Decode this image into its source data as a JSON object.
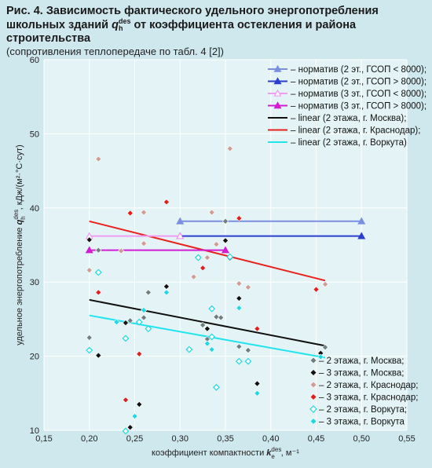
{
  "title": {
    "line1": "Рис. 4. Зависимость фактического удельного энергопотребления",
    "line2_pre": "школьных зданий ",
    "line2_sym": "q",
    "line2_sup": "des",
    "line2_sub": "h",
    "line2_post": " от коэффициента остекления и района строительства",
    "line3": "(сопротивления теплопередаче по табл. 4 [2])"
  },
  "chart_data": {
    "type": "scatter",
    "xlabel_pre": "коэффициент компактности ",
    "xlabel_sym": "k",
    "xlabel_sup": "des",
    "xlabel_sub": "e",
    "xlabel_post": ", м⁻¹",
    "ylabel_pre": "удельное энергопотребление ",
    "ylabel_sym": "q",
    "ylabel_sup": "des",
    "ylabel_sub": "h",
    "ylabel_post": ", кДж/(м²·°С·сут)",
    "xlim": [
      0.15,
      0.55
    ],
    "ylim": [
      10,
      60
    ],
    "xticks": [
      "0,15",
      "0,20",
      "0,25",
      "0,30",
      "0,35",
      "0,40",
      "0,45",
      "0,50",
      "0,55"
    ],
    "xtick_values": [
      0.15,
      0.2,
      0.25,
      0.3,
      0.35,
      0.4,
      0.45,
      0.5,
      0.55
    ],
    "yticks": [
      "10",
      "20",
      "30",
      "40",
      "50",
      "60"
    ],
    "ytick_values": [
      10,
      20,
      30,
      40,
      50,
      60
    ],
    "grid": true,
    "legend_top": [
      {
        "label": "– норматив (2 эт., ГСОП < 8000);",
        "color": "#7b8fe0",
        "marker": "triangle"
      },
      {
        "label": "– норматив (2 эт., ГСОП > 8000);",
        "color": "#2b3fcf",
        "marker": "triangle"
      },
      {
        "label": "– норматив (3 эт., ГСОП < 8000);",
        "color": "#f09cf0",
        "marker": "triangle-open"
      },
      {
        "label": "– норматив (3 эт., ГСОП > 8000);",
        "color": "#d21dd2",
        "marker": "triangle"
      },
      {
        "label": "– linear (2 этажа, г. Москва);",
        "color": "#111111",
        "marker": "none"
      },
      {
        "label": "– linear (2 этажа, г. Краснодар);",
        "color": "#e8201e",
        "marker": "none"
      },
      {
        "label": "– linear (2 этажа, г. Воркута)",
        "color": "#22e4ee",
        "marker": "none"
      }
    ],
    "legend_bottom": [
      {
        "label": "– 2 этажа, г. Москва;",
        "color": "#6f7f7f",
        "fill": "solid"
      },
      {
        "label": "– 3 этажа, г. Москва;",
        "color": "#111111",
        "fill": "solid"
      },
      {
        "label": "– 2 этажа, г. Краснодар;",
        "color": "#d19b96",
        "fill": "solid"
      },
      {
        "label": "– 3 этажа, г. Краснодар;",
        "color": "#e0201c",
        "fill": "solid"
      },
      {
        "label": "– 2 этажа, г. Воркута;",
        "color": "#20d8e2",
        "fill": "open"
      },
      {
        "label": "– 3 этажа, г. Воркута",
        "color": "#20d8e2",
        "fill": "solid"
      }
    ],
    "norm_lines": [
      {
        "series": 0,
        "x": [
          0.3,
          0.5
        ],
        "y": [
          38.2,
          38.2
        ],
        "color": "#7b8fe0",
        "marker": "triangle"
      },
      {
        "series": 1,
        "x": [
          0.3,
          0.5
        ],
        "y": [
          36.2,
          36.2
        ],
        "color": "#2b3fcf",
        "marker": "triangle"
      },
      {
        "series": 2,
        "x": [
          0.2,
          0.3
        ],
        "y": [
          36.2,
          36.2
        ],
        "color": "#f09cf0",
        "marker": "triangle-open"
      },
      {
        "series": 3,
        "x": [
          0.2,
          0.35
        ],
        "y": [
          34.3,
          34.3
        ],
        "color": "#d21dd2",
        "marker": "triangle"
      }
    ],
    "trend_lines": [
      {
        "series": 4,
        "x": [
          0.2,
          0.46
        ],
        "y": [
          27.6,
          21.4
        ],
        "color": "#111111"
      },
      {
        "series": 5,
        "x": [
          0.2,
          0.46
        ],
        "y": [
          38.2,
          30.2
        ],
        "color": "#e8201e"
      },
      {
        "series": 6,
        "x": [
          0.2,
          0.46
        ],
        "y": [
          25.5,
          19.8
        ],
        "color": "#22e4ee"
      }
    ],
    "points": [
      {
        "series": 0,
        "data": [
          [
            0.2,
            22.5
          ],
          [
            0.21,
            34.3
          ],
          [
            0.245,
            24.8
          ],
          [
            0.26,
            25.2
          ],
          [
            0.265,
            28.6
          ],
          [
            0.325,
            24.2
          ],
          [
            0.33,
            22.3
          ],
          [
            0.34,
            25.3
          ],
          [
            0.345,
            25.2
          ],
          [
            0.35,
            38.2
          ],
          [
            0.355,
            33.2
          ],
          [
            0.365,
            21.3
          ],
          [
            0.375,
            20.8
          ],
          [
            0.46,
            21.2
          ]
        ]
      },
      {
        "series": 1,
        "data": [
          [
            0.2,
            35.7
          ],
          [
            0.21,
            20.1
          ],
          [
            0.24,
            24.5
          ],
          [
            0.245,
            10.4
          ],
          [
            0.255,
            13.5
          ],
          [
            0.285,
            29.4
          ],
          [
            0.33,
            23.7
          ],
          [
            0.35,
            35.6
          ],
          [
            0.365,
            27.8
          ],
          [
            0.385,
            16.3
          ],
          [
            0.455,
            20.4
          ]
        ]
      },
      {
        "series": 2,
        "data": [
          [
            0.2,
            31.6
          ],
          [
            0.21,
            46.6
          ],
          [
            0.235,
            34.2
          ],
          [
            0.26,
            39.4
          ],
          [
            0.26,
            35.2
          ],
          [
            0.315,
            30.7
          ],
          [
            0.33,
            33.3
          ],
          [
            0.335,
            39.4
          ],
          [
            0.34,
            35.1
          ],
          [
            0.355,
            48.0
          ],
          [
            0.365,
            29.8
          ],
          [
            0.375,
            29.3
          ],
          [
            0.46,
            29.7
          ]
        ]
      },
      {
        "series": 3,
        "data": [
          [
            0.21,
            28.6
          ],
          [
            0.24,
            14.1
          ],
          [
            0.245,
            39.3
          ],
          [
            0.255,
            20.3
          ],
          [
            0.285,
            40.8
          ],
          [
            0.325,
            31.9
          ],
          [
            0.365,
            38.6
          ],
          [
            0.385,
            23.7
          ],
          [
            0.45,
            29.0
          ]
        ]
      },
      {
        "series": 4,
        "data": [
          [
            0.2,
            20.8
          ],
          [
            0.21,
            31.3
          ],
          [
            0.24,
            22.4
          ],
          [
            0.24,
            9.9
          ],
          [
            0.255,
            24.6
          ],
          [
            0.265,
            23.7
          ],
          [
            0.31,
            20.9
          ],
          [
            0.32,
            33.3
          ],
          [
            0.335,
            26.4
          ],
          [
            0.335,
            22.6
          ],
          [
            0.34,
            15.8
          ],
          [
            0.355,
            33.4
          ],
          [
            0.365,
            19.3
          ],
          [
            0.375,
            19.3
          ]
        ]
      },
      {
        "series": 5,
        "data": [
          [
            0.23,
            24.6
          ],
          [
            0.25,
            11.9
          ],
          [
            0.26,
            26.2
          ],
          [
            0.285,
            28.6
          ],
          [
            0.33,
            21.7
          ],
          [
            0.335,
            20.9
          ],
          [
            0.365,
            26.5
          ],
          [
            0.385,
            15.0
          ],
          [
            0.455,
            19.9
          ]
        ]
      }
    ]
  }
}
